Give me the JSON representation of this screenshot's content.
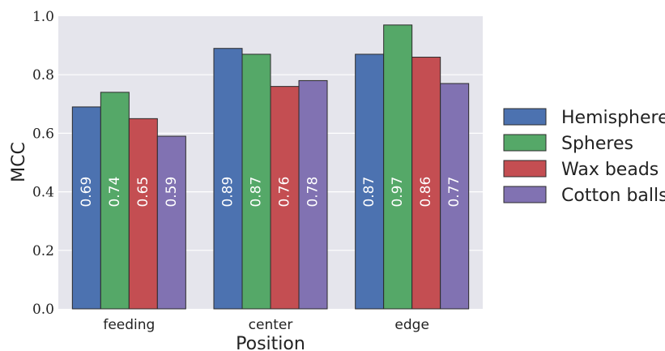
{
  "chart_data": {
    "type": "bar",
    "title": "",
    "xlabel": "Position",
    "ylabel": "MCC",
    "ylim": [
      0,
      1
    ],
    "yticks": [
      0.0,
      0.2,
      0.4,
      0.6,
      0.8,
      1.0
    ],
    "ytick_labels": [
      "0.0",
      "0.2",
      "0.4",
      "0.6",
      "0.8",
      "1.0"
    ],
    "categories": [
      "feeding",
      "center",
      "edge"
    ],
    "series": [
      {
        "name": "Hemispheres",
        "color": "#4c72b0",
        "values": [
          0.69,
          0.89,
          0.87
        ]
      },
      {
        "name": "Spheres",
        "color": "#55a868",
        "values": [
          0.74,
          0.87,
          0.97
        ]
      },
      {
        "name": "Wax beads",
        "color": "#c44e52",
        "values": [
          0.65,
          0.76,
          0.86
        ]
      },
      {
        "name": "Cotton balls",
        "color": "#8172b2",
        "values": [
          0.59,
          0.78,
          0.77
        ]
      }
    ],
    "value_labels": true,
    "grid": true,
    "background": "#e5e5ec",
    "legend_position": "right"
  }
}
